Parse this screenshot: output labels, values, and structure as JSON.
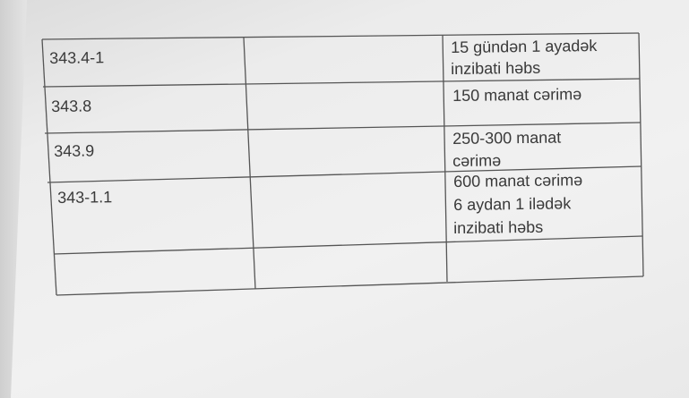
{
  "table": {
    "rows": [
      {
        "code": "343.4-1",
        "note": "",
        "penalty": [
          "15 gündən 1 ayadək",
          "inzibati həbs"
        ]
      },
      {
        "code": "343.8",
        "note": "",
        "penalty": [
          "150 manat cərimə"
        ]
      },
      {
        "code": "343.9",
        "note": "",
        "penalty": [
          "250-300 manat",
          "cərimə"
        ]
      },
      {
        "code": "343-1.1",
        "note": "",
        "penalty": [
          "600 manat cərimə",
          "6 aydan 1 ilədək",
          "inzibati həbs"
        ]
      },
      {
        "code": "",
        "note": "",
        "penalty": []
      }
    ]
  }
}
